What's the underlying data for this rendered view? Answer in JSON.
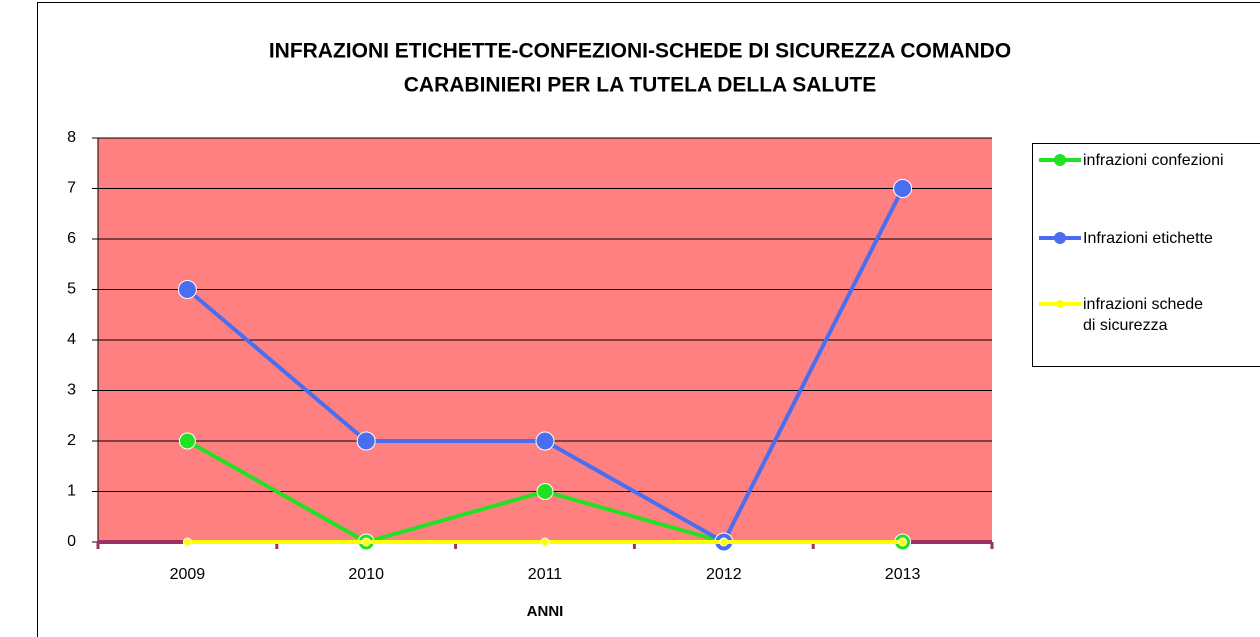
{
  "chart_data": {
    "type": "line",
    "title": [
      "INFRAZIONI ETICHETTE-CONFEZIONI-SCHEDE DI SICUREZZA  COMANDO",
      "CARABINIERI PER LA TUTELA DELLA SALUTE"
    ],
    "xlabel": "ANNI",
    "categories": [
      "2009",
      "2010",
      "2011",
      "2012",
      "2013"
    ],
    "series": [
      {
        "name": "infrazioni confezioni",
        "color": "#22e022",
        "values": [
          2,
          0,
          1,
          0,
          0
        ]
      },
      {
        "name": "Infrazioni etichette",
        "color": "#4a6ef0",
        "values": [
          5,
          2,
          2,
          0,
          7
        ]
      },
      {
        "name": "infrazioni schede di sicurezza",
        "color": "#ffff00",
        "values": [
          0,
          0,
          0,
          0,
          0
        ]
      }
    ],
    "ylim": [
      0,
      8
    ],
    "yticks": [
      0,
      1,
      2,
      3,
      4,
      5,
      6,
      7,
      8
    ],
    "grid": true,
    "plot_background": "#ff8080",
    "legend": "right"
  }
}
